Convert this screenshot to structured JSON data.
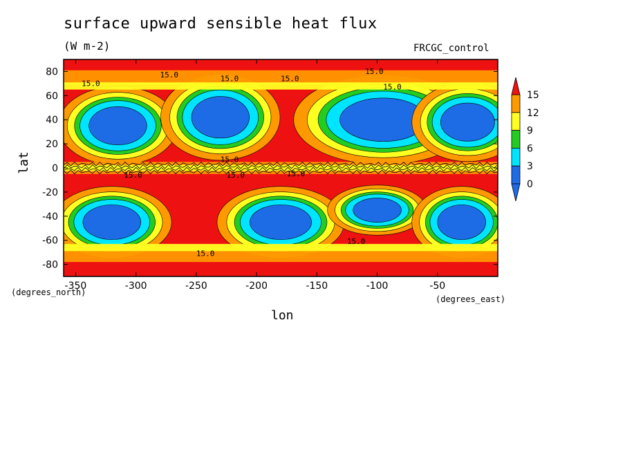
{
  "chart_data": {
    "type": "heatmap",
    "title": "surface upward sensible heat flux",
    "units": "(W m-2)",
    "run_label": "FRCGC_control",
    "xlabel": "lon",
    "ylabel": "lat",
    "x_units_label": "(degrees_east)",
    "y_units_label": "(degrees_north)",
    "xlim": [
      -360,
      0
    ],
    "ylim": [
      -90,
      90
    ],
    "xticks": [
      -350,
      -300,
      -250,
      -200,
      -150,
      -100,
      -50
    ],
    "yticks": [
      80,
      60,
      40,
      20,
      0,
      -20,
      -40,
      -60,
      -80
    ],
    "contour_labels": [
      "15.0",
      "15.0",
      "15.0",
      "15.0",
      "15.0",
      "15.0",
      "15.0",
      "15.0",
      "15.0",
      "15.0",
      "15.0",
      "15.0"
    ],
    "colorbar": {
      "levels": [
        0,
        3,
        6,
        9,
        12,
        15
      ],
      "colors": {
        "below_0": "#1e6be6",
        "0_3": "#1e6be6",
        "3_6": "#00e5ff",
        "6_9": "#22cc22",
        "9_12": "#ffff22",
        "12_15": "#ff9900",
        "above_15": "#ee1111"
      },
      "extend": "both"
    },
    "features": [
      {
        "region": "lon -330 to -300, lat 25 to 45",
        "value_range": "0-3"
      },
      {
        "region": "lon -250 to -210, lat 25 to 60",
        "value_range": "0-3"
      },
      {
        "region": "lon -115 to -70, lat 25 to 55",
        "value_range": "0-3"
      },
      {
        "region": "lon -45 to -10, lat 25 to 50",
        "value_range": "0-3"
      },
      {
        "region": "lon -340 to -300, lat -60 to -35",
        "value_range": "0-3"
      },
      {
        "region": "lon -200 to -160, lat -60 to -35",
        "value_range": "0-3"
      },
      {
        "region": "lon -110 to -95, lat -40 to -30",
        "value_range": "0-3"
      },
      {
        "region": "lon -45 to -25, lat -55 to -35",
        "value_range": "0-3"
      },
      {
        "region": "large open areas",
        "value_range": ">15"
      },
      {
        "region": "equatorial band lat -5 to 5",
        "value_range": "9-15"
      }
    ]
  }
}
